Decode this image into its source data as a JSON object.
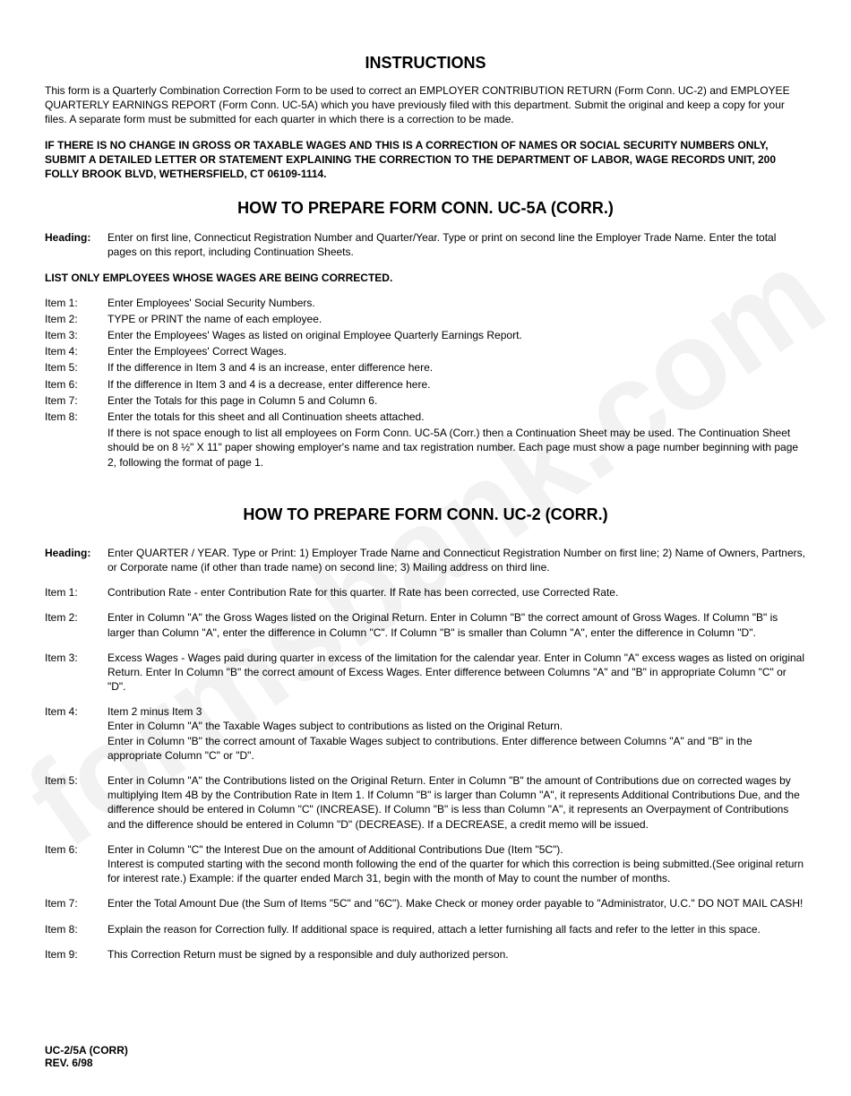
{
  "watermark": "formsbank.com",
  "title": "INSTRUCTIONS",
  "intro1": "This form is a Quarterly Combination Correction Form to be used to correct an EMPLOYER CONTRIBUTION   RETURN (Form Conn.  UC-2) and EMPLOYEE QUARTERLY EARNINGS REPORT (Form Conn.  UC-5A)  which you have previously filed with this department.  Submit the original and keep a  copy for your files.  A separate form must be submitted for each quarter in which there is a correction to be made.",
  "intro2": "IF THERE IS NO CHANGE IN GROSS OR TAXABLE WAGES AND THIS IS A CORRECTION OF NAMES OR SOCIAL SECURITY NUMBERS ONLY,   SUBMIT A DETAILED LETTER OR STATEMENT EXPLAINING THE CORRECTION TO THE DEPARTMENT OF LABOR, WAGE RECORDS UNIT,  200 FOLLY BROOK BLVD,  WETHERSFIELD, CT 06109-1114.",
  "section1_title": "HOW TO PREPARE FORM CONN.  UC-5A (CORR.)",
  "s1_heading_label": "Heading:",
  "s1_heading_text": "Enter on first line, Connecticut Registration Number and Quarter/Year.  Type or print on second line  the Employer Trade Name.  Enter the total pages on this report, including Continuation Sheets.",
  "s1_listonly": "LIST ONLY EMPLOYEES WHOSE WAGES ARE BEING CORRECTED.",
  "s1_items": [
    {
      "label": "Item  1:",
      "text": "Enter Employees' Social Security Numbers."
    },
    {
      "label": "Item  2:",
      "text": "TYPE or PRINT the name of each employee."
    },
    {
      "label": "Item  3:",
      "text": "Enter the Employees' Wages as listed on original Employee Quarterly Earnings Report."
    },
    {
      "label": "Item  4:",
      "text": "Enter the Employees'  Correct Wages."
    },
    {
      "label": "Item  5:",
      "text": "If the difference in Item 3 and 4 is an increase, enter difference here."
    },
    {
      "label": "Item  6:",
      "text": "If the difference in Item 3 and 4 is a decrease, enter difference here."
    },
    {
      "label": "Item  7:",
      "text": "Enter the Totals for this page in Column 5 and Column 6."
    },
    {
      "label": "Item  8:",
      "text": "Enter the totals for this sheet and all Continuation sheets attached."
    }
  ],
  "s1_item8_extra": "If there is not space enough to list all employees on Form Conn.  UC-5A (Corr.)  then a  Continuation Sheet may be used.  The Continuation Sheet  should be on 8 ½\" X 11\" paper showing employer's name and tax registration number. Each  page must show a page number beginning with page  2, following the format of page 1.",
  "section2_title": "HOW TO PREPARE FORM CONN.  UC-2 (CORR.)",
  "s2_heading_label": "Heading:",
  "s2_heading_text": "Enter QUARTER / YEAR.  Type or Print: 1) Employer Trade Name  and Connecticut Registration  Number on first line; 2)  Name of Owners,  Partners, or Corporate name (if other than trade name) on second line; 3)  Mailing address on third line.",
  "s2_items": [
    {
      "label": "Item  1:",
      "text": "Contribution  Rate - enter Contribution  Rate for this quarter.  If Rate has been corrected, use Corrected Rate."
    },
    {
      "label": "Item  2:",
      "text": "Enter in Column \"A\" the Gross Wages listed on the Original Return.  Enter in Column \"B\" the correct  amount of Gross Wages.  If Column \"B\" is larger than Column \"A\",  enter the difference in Column  \"C\".  If Column \"B\" is smaller than Column \"A\", enter the difference in Column \"D\"."
    },
    {
      "label": "Item  3:",
      "text": "Excess Wages - Wages paid during quarter in excess of the limitation for the calendar year.  Enter in Column \"A\" excess wages as listed on original Return.  Enter  In Column \"B\" the correct   amount of Excess Wages.  Enter difference between Columns \"A\" and \"B\" in appropriate Column \"C\"  or \"D\"."
    },
    {
      "label": "Item  4:",
      "text": "Item 2 minus Item 3\nEnter in Column \"A\" the Taxable  Wages subject to contributions as listed  on the Original Return.\nEnter in Column \"B\" the correct amount of Taxable Wages subject to contributions.  Enter difference  between Columns \"A\" and \"B\" in the appropriate Column \"C\" or \"D\"."
    },
    {
      "label": "Item  5:",
      "text": "Enter in Column \"A\" the Contributions listed on the Original Return.  Enter in Column \"B\" the amount  of Contributions due on corrected wages by multiplying Item 4B by the Contribution Rate  in Item 1. If Column \"B\" is larger than Column \"A\", it represents Additional Contributions Due, and the  difference should be entered in Column \"C\" (INCREASE).  If  Column \"B\" is less than Column \"A\", it represents an Overpayment of Contributions and the difference should be entered in Column \"D\"  (DECREASE). If a  DECREASE, a  credit memo will be issued."
    },
    {
      "label": "Item  6:",
      "text": "Enter in Column \"C\" the Interest Due on the amount of Additional Contributions Due (Item \"5C\").\nInterest is computed starting with the second month following the end of the quarter for which this correction is being submitted.(See original return for interest rate.)  Example: if the quarter ended March 31, begin with the month of May to count the number of months."
    },
    {
      "label": "Item  7:",
      "text": "Enter the Total Amount Due (the Sum of Items  \"5C\"  and \"6C\").  Make Check or money order payable to   \"Administrator, U.C.\"  DO NOT MAIL CASH!"
    },
    {
      "label": "Item  8:",
      "text": "Explain  the reason for Correction fully.  If additional space is required, attach a letter furnishing all facts and refer  to the letter in this space."
    },
    {
      "label": "Item  9:",
      "text": "This Correction Return must be signed by a responsible and duly authorized person."
    }
  ],
  "footer1": "UC-2/5A (CORR)",
  "footer2": "REV.  6/98"
}
